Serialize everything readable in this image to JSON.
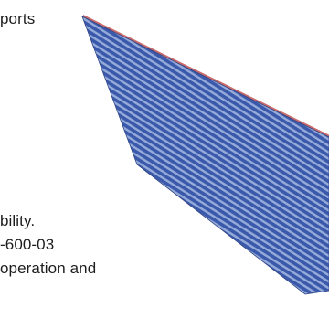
{
  "text_lines": [
    "ports",
    "bility.",
    "-600-03",
    "operation and"
  ],
  "cable": {
    "icon": "ribbon-cable-image",
    "stripe_color": "#2f4fa6",
    "gap_color": "#8fa6d8",
    "edge_color": "#b83a3a"
  }
}
